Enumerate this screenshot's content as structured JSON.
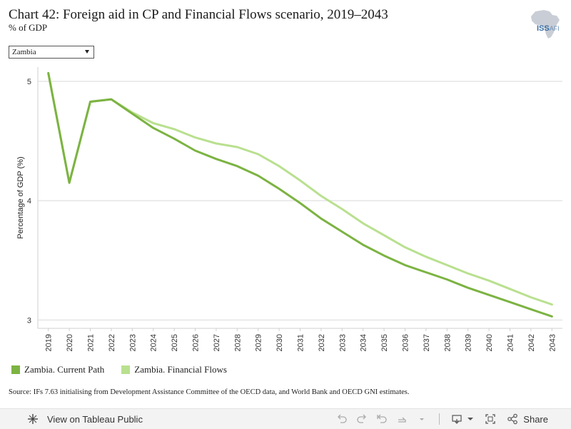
{
  "header": {
    "title": "Chart 42: Foreign aid in CP and Financial Flows scenario, 2019–2043",
    "subtitle": "% of GDP"
  },
  "logo": {
    "text_iss": "ISS",
    "text_afi": "AFI",
    "icon": "africa-map-logo"
  },
  "filter": {
    "selected": "Zambia"
  },
  "legend": [
    {
      "label": "Zambia. Current Path",
      "color": "#7cb342"
    },
    {
      "label": "Zambia. Financial Flows",
      "color": "#b9e08f"
    }
  ],
  "source": "Source: IFs 7.63 initialising from Development Assistance Committee of the OECD data, and World Bank and OECD GNI estimates.",
  "toolbar": {
    "view_label": "View on Tableau Public",
    "share_label": "Share",
    "icons": [
      "tableau-icon",
      "undo-icon",
      "redo-icon",
      "revert-icon",
      "refresh-icon",
      "pause-icon",
      "download-icon",
      "fullscreen-icon",
      "share-icon"
    ]
  },
  "chart_data": {
    "type": "line",
    "x": [
      "2019",
      "2020",
      "2021",
      "2022",
      "2023",
      "2024",
      "2025",
      "2026",
      "2027",
      "2028",
      "2029",
      "2030",
      "2031",
      "2032",
      "2033",
      "2034",
      "2035",
      "2036",
      "2037",
      "2038",
      "2039",
      "2040",
      "2041",
      "2042",
      "2043"
    ],
    "series": [
      {
        "name": "Zambia. Current Path",
        "color": "#7cb342",
        "values": [
          5.07,
          4.15,
          4.83,
          4.85,
          4.73,
          4.61,
          4.52,
          4.42,
          4.35,
          4.29,
          4.21,
          4.1,
          3.98,
          3.85,
          3.74,
          3.63,
          3.54,
          3.46,
          3.4,
          3.34,
          3.27,
          3.21,
          3.15,
          3.09,
          3.03
        ]
      },
      {
        "name": "Zambia. Financial Flows",
        "color": "#b9e08f",
        "values": [
          5.07,
          4.15,
          4.83,
          4.85,
          4.74,
          4.65,
          4.6,
          4.53,
          4.48,
          4.45,
          4.39,
          4.29,
          4.17,
          4.04,
          3.93,
          3.81,
          3.71,
          3.61,
          3.53,
          3.46,
          3.39,
          3.33,
          3.26,
          3.19,
          3.13
        ]
      }
    ],
    "ylabel": "Percentage of GDP (%)",
    "yticks": [
      3,
      4,
      5
    ],
    "ylim": [
      2.93,
      5.12
    ],
    "grid": true
  }
}
